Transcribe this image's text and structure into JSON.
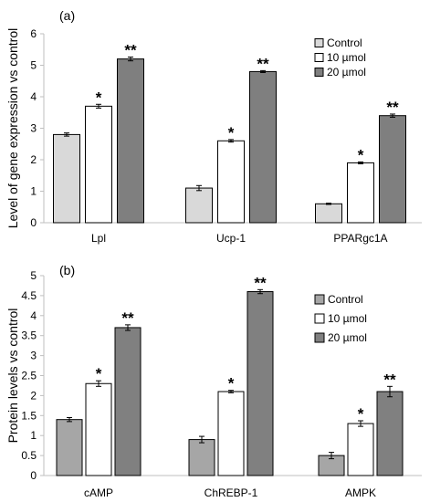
{
  "colors": {
    "axis": "#bfbfbf",
    "bar_outline": "#000000",
    "error_bar": "#000000"
  },
  "chart_data": [
    {
      "type": "bar",
      "panel_label": "(a)",
      "title": "",
      "xlabel": "",
      "ylabel": "Level of gene expression vs control",
      "ylim": [
        0,
        6
      ],
      "yticks": [
        "0",
        "1",
        "2",
        "3",
        "4",
        "5",
        "6"
      ],
      "categories": [
        "Lpl",
        "Ucp-1",
        "PPARgc1A"
      ],
      "legend_position": "top-right",
      "grid": false,
      "series": [
        {
          "name": "Control",
          "color": "#d9d9d9",
          "values": [
            2.8,
            1.1,
            0.6
          ],
          "errors": [
            0.05,
            0.08,
            0.02
          ],
          "annotations": [
            "",
            "",
            ""
          ]
        },
        {
          "name": "10 µmol",
          "color": "#ffffff",
          "values": [
            3.7,
            2.6,
            1.9
          ],
          "errors": [
            0.06,
            0.04,
            0.03
          ],
          "annotations": [
            "*",
            "*",
            "*"
          ]
        },
        {
          "name": "20 µmol",
          "color": "#7f7f7f",
          "values": [
            5.2,
            4.8,
            3.4
          ],
          "errors": [
            0.06,
            0.03,
            0.05
          ],
          "annotations": [
            "**",
            "**",
            "**"
          ]
        }
      ]
    },
    {
      "type": "bar",
      "panel_label": "(b)",
      "title": "",
      "xlabel": "",
      "ylabel": "Protein levels vs control",
      "ylim": [
        0,
        5
      ],
      "yticks": [
        "0",
        "0.5",
        "1",
        "1.5",
        "2",
        "2.5",
        "3",
        "3.5",
        "4",
        "4.5",
        "5"
      ],
      "categories": [
        "cAMP",
        "ChREBP-1",
        "AMPK"
      ],
      "legend_position": "top-right",
      "grid": false,
      "series": [
        {
          "name": "Control",
          "color": "#a6a6a6",
          "values": [
            1.4,
            0.9,
            0.5
          ],
          "errors": [
            0.05,
            0.08,
            0.08
          ],
          "annotations": [
            "",
            "",
            ""
          ]
        },
        {
          "name": "10 µmol",
          "color": "#ffffff",
          "values": [
            2.3,
            2.1,
            1.3
          ],
          "errors": [
            0.07,
            0.03,
            0.07
          ],
          "annotations": [
            "*",
            "*",
            "*"
          ]
        },
        {
          "name": "20 µmol",
          "color": "#808080",
          "values": [
            3.7,
            4.6,
            2.1
          ],
          "errors": [
            0.07,
            0.05,
            0.13
          ],
          "annotations": [
            "**",
            "**",
            "**"
          ]
        }
      ]
    }
  ]
}
